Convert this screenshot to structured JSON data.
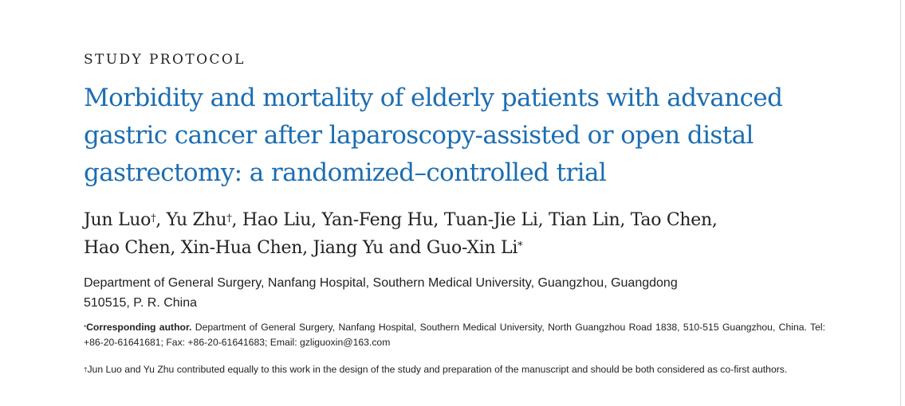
{
  "section_label": "STUDY PROTOCOL",
  "title": "Morbidity and mortality of elderly patients with advanced gastric cancer after laparoscopy-assisted or open distal gastrectomy: a randomized–controlled trial",
  "authors": {
    "line1_part1": "Jun Luo",
    "dagger1": "†",
    "line1_part2": ", Yu Zhu",
    "dagger2": "†",
    "line1_part3": ", Hao Liu, Yan-Feng Hu, Tuan-Jie Li, Tian Lin, Tao Chen,",
    "line2_part1": "Hao Chen, Xin-Hua Chen, Jiang Yu and Guo-Xin Li",
    "asterisk": "*"
  },
  "affiliation": {
    "line1": "Department of General Surgery, Nanfang Hospital, Southern Medical University, Guangzhou, Guangdong",
    "line2": "510515, P. R. China"
  },
  "corresponding": {
    "marker": "*",
    "lead": "Corresponding author.",
    "text": " Department of General Surgery, Nanfang Hospital, Southern Medical University, North Guangzhou Road 1838, 510-515 Guangzhou, China. Tel: +86-20-61641681; Fax: +86-20-61641683; Email: gzliguoxin@163.com"
  },
  "footnote": {
    "marker": "†",
    "text": "Jun Luo and Yu Zhu contributed equally to this work in the design of the study and preparation of the manuscript and should be both considered as co-first authors."
  }
}
